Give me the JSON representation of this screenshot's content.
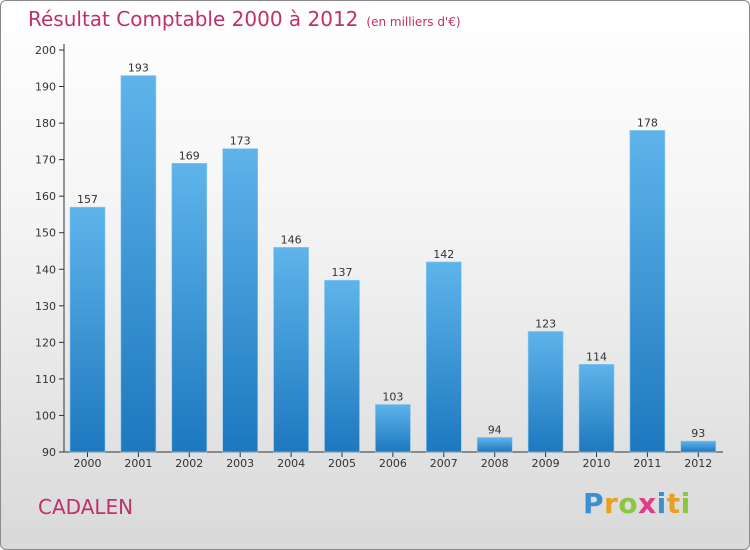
{
  "header": {
    "title": "Résultat Comptable 2000 à 2012",
    "unit": "(en milliers d'€)"
  },
  "footer": {
    "commune": "CADALEN",
    "logo_text": "Proxiti"
  },
  "colors": {
    "accent": "#c0306a",
    "bar_light": "#5eb4ea",
    "bar_dark": "#1e78bf"
  },
  "chart_data": {
    "type": "bar",
    "title": "Résultat Comptable 2000 à 2012",
    "subtitle": "(en milliers d'€)",
    "xlabel": "",
    "ylabel": "",
    "categories": [
      "2000",
      "2001",
      "2002",
      "2003",
      "2004",
      "2005",
      "2006",
      "2007",
      "2008",
      "2009",
      "2010",
      "2011",
      "2012"
    ],
    "values": [
      157,
      193,
      169,
      173,
      146,
      137,
      103,
      142,
      94,
      123,
      114,
      178,
      93
    ],
    "ylim": [
      90,
      200
    ],
    "yticks": [
      90,
      100,
      110,
      120,
      130,
      140,
      150,
      160,
      170,
      180,
      190,
      200
    ],
    "grid": false,
    "legend": "none"
  }
}
